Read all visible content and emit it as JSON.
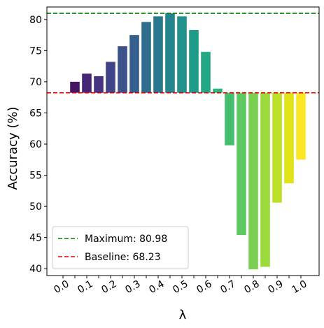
{
  "chart_data": {
    "type": "bar",
    "x_label": "λ",
    "y_label": "Accuracy (%)",
    "categories": [
      "0.0",
      null,
      "0.1",
      null,
      "0.2",
      null,
      "0.3",
      null,
      "0.4",
      null,
      "0.5",
      null,
      "0.6",
      null,
      "0.7",
      null,
      "0.8",
      null,
      "0.9",
      null,
      "1.0"
    ],
    "baseline": 68.23,
    "series": [
      {
        "colors": [
          "#440154",
          "#471365",
          "#482475",
          "#463480",
          "#414487",
          "#3b528b",
          "#355f8d",
          "#2f6c8e",
          "#2a788e",
          "#25848e",
          "#21918c",
          "#1e9c89",
          "#22a884",
          "#2fb47c",
          "#44bf70",
          "#5ec962",
          "#7ad151",
          "#9bd93c",
          "#bddf26",
          "#dfe318",
          "#fde725"
        ],
        "values": [
          68.23,
          70.0,
          71.3,
          70.9,
          73.2,
          75.7,
          77.5,
          79.6,
          80.5,
          80.98,
          80.5,
          78.3,
          74.8,
          68.9,
          59.8,
          45.4,
          39.9,
          40.3,
          50.6,
          53.7,
          57.5
        ]
      }
    ],
    "hlines": [
      {
        "label": "Maximum: 80.98",
        "value": 80.98,
        "color": "#008000"
      },
      {
        "label": "Baseline: 68.23",
        "value": 68.23,
        "color": "#e00000"
      }
    ],
    "ylim": [
      38.9,
      82.0
    ],
    "yticks": [
      40,
      45,
      50,
      55,
      60,
      65,
      70,
      75,
      80
    ],
    "legend": "lower left"
  }
}
